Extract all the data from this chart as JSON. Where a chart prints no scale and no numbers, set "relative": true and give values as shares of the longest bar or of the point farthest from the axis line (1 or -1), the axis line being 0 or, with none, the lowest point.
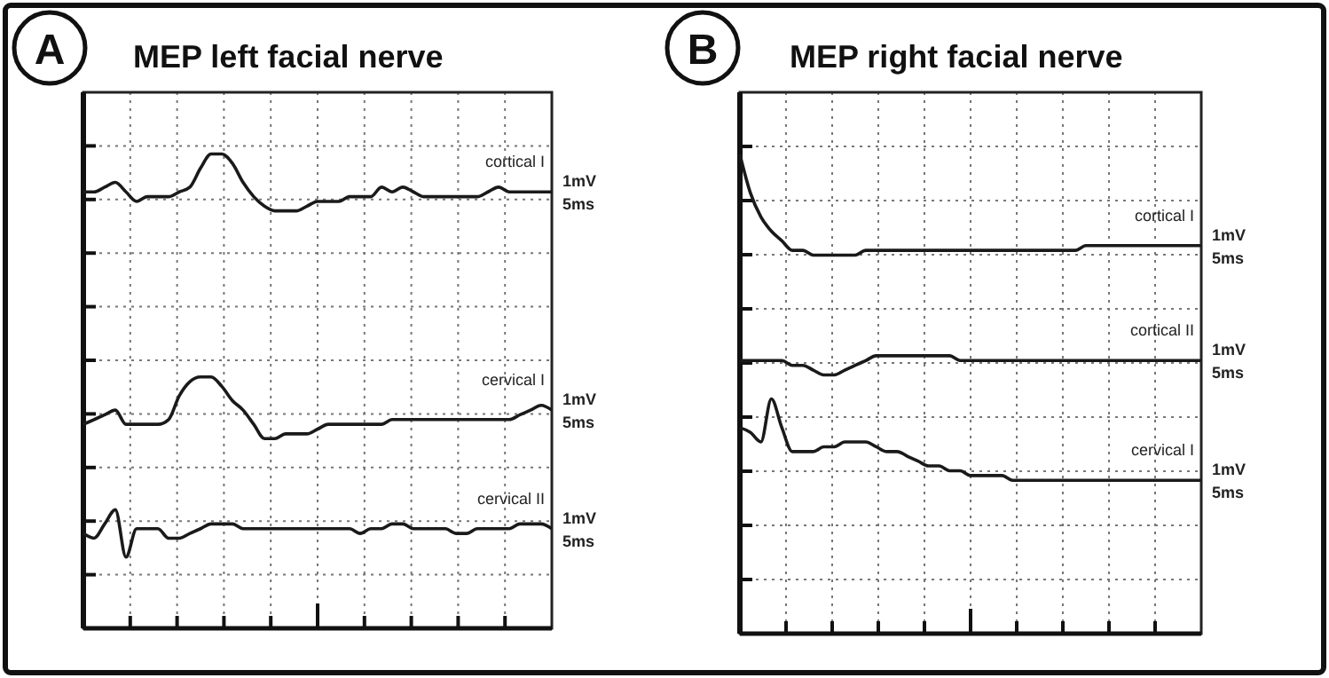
{
  "chart_data": [
    {
      "type": "line",
      "title": "MEP left facial nerve",
      "relative": true,
      "grid": true,
      "categories": [
        null,
        null,
        null,
        null,
        null,
        null,
        null,
        null,
        null,
        null,
        null,
        null,
        null,
        null,
        null,
        null,
        null,
        null,
        null,
        null,
        null,
        null,
        null,
        null,
        null,
        null,
        null,
        null,
        null,
        null,
        null,
        null,
        null,
        null,
        null,
        null,
        null,
        null,
        null,
        null,
        null,
        null,
        null,
        null,
        null
      ],
      "annotations": [
        "A",
        "1mV",
        "5ms",
        "1mV",
        "5ms",
        "1mV",
        "5ms"
      ],
      "series": [
        {
          "name": "cortical I",
          "color": "#1a1a1a",
          "values": [
            0.92,
            0.92,
            0.93,
            0.94,
            0.92,
            0.9,
            0.91,
            0.91,
            0.91,
            0.92,
            0.93,
            0.97,
            1,
            1,
            0.98,
            0.94,
            0.91,
            0.89,
            0.88,
            0.88,
            0.88,
            0.89,
            0.9,
            0.9,
            0.9,
            0.91,
            0.91,
            0.91,
            0.93,
            0.92,
            0.93,
            0.92,
            0.91,
            0.91,
            0.91,
            0.91,
            0.91,
            0.91,
            0.92,
            0.93,
            0.92,
            0.92,
            0.92,
            0.92,
            0.92
          ]
        },
        {
          "name": "cervical I",
          "color": "#1a1a1a",
          "values": [
            0.43,
            0.44,
            0.45,
            0.46,
            0.43,
            0.43,
            0.43,
            0.43,
            0.44,
            0.49,
            0.52,
            0.53,
            0.53,
            0.51,
            0.48,
            0.46,
            0.43,
            0.4,
            0.4,
            0.41,
            0.41,
            0.41,
            0.42,
            0.43,
            0.43,
            0.43,
            0.43,
            0.43,
            0.43,
            0.44,
            0.44,
            0.44,
            0.44,
            0.44,
            0.44,
            0.44,
            0.44,
            0.44,
            0.44,
            0.44,
            0.44,
            0.45,
            0.46,
            0.47,
            0.46
          ]
        },
        {
          "name": "cervical II",
          "color": "#1a1a1a",
          "values": [
            0.2,
            0.19,
            0.22,
            0.25,
            0.15,
            0.21,
            0.21,
            0.21,
            0.19,
            0.19,
            0.2,
            0.21,
            0.22,
            0.22,
            0.22,
            0.21,
            0.21,
            0.21,
            0.21,
            0.21,
            0.21,
            0.21,
            0.21,
            0.21,
            0.21,
            0.21,
            0.2,
            0.21,
            0.21,
            0.22,
            0.22,
            0.21,
            0.21,
            0.21,
            0.21,
            0.2,
            0.2,
            0.21,
            0.21,
            0.21,
            0.21,
            0.22,
            0.22,
            0.22,
            0.21
          ]
        }
      ]
    },
    {
      "type": "line",
      "title": "MEP right facial nerve",
      "relative": true,
      "grid": true,
      "categories": [
        null,
        null,
        null,
        null,
        null,
        null,
        null,
        null,
        null,
        null,
        null,
        null,
        null,
        null,
        null,
        null,
        null,
        null,
        null,
        null,
        null,
        null,
        null,
        null,
        null,
        null,
        null,
        null,
        null,
        null,
        null,
        null,
        null,
        null,
        null,
        null,
        null,
        null,
        null,
        null,
        null,
        null,
        null,
        null,
        null
      ],
      "annotations": [
        "B",
        "1mV",
        "5ms",
        "1mV",
        "5ms",
        "1mV",
        "5ms"
      ],
      "series": [
        {
          "name": "cortical I",
          "color": "#1a1a1a",
          "values": [
            1,
            0.92,
            0.87,
            0.84,
            0.82,
            0.8,
            0.8,
            0.79,
            0.79,
            0.79,
            0.79,
            0.79,
            0.8,
            0.8,
            0.8,
            0.8,
            0.8,
            0.8,
            0.8,
            0.8,
            0.8,
            0.8,
            0.8,
            0.8,
            0.8,
            0.8,
            0.8,
            0.8,
            0.8,
            0.8,
            0.8,
            0.8,
            0.8,
            0.81,
            0.81,
            0.81,
            0.81,
            0.81,
            0.81,
            0.81,
            0.81,
            0.81,
            0.81,
            0.81,
            0.81
          ]
        },
        {
          "name": "cortical II",
          "color": "#1a1a1a",
          "values": [
            0.57,
            0.57,
            0.57,
            0.57,
            0.57,
            0.56,
            0.56,
            0.55,
            0.54,
            0.54,
            0.55,
            0.56,
            0.57,
            0.58,
            0.58,
            0.58,
            0.58,
            0.58,
            0.58,
            0.58,
            0.58,
            0.57,
            0.57,
            0.57,
            0.57,
            0.57,
            0.57,
            0.57,
            0.57,
            0.57,
            0.57,
            0.57,
            0.57,
            0.57,
            0.57,
            0.57,
            0.57,
            0.57,
            0.57,
            0.57,
            0.57,
            0.57,
            0.57,
            0.57,
            0.57
          ]
        },
        {
          "name": "cervical I",
          "color": "#1a1a1a",
          "values": [
            0.43,
            0.42,
            0.4,
            0.49,
            0.43,
            0.38,
            0.38,
            0.38,
            0.39,
            0.39,
            0.4,
            0.4,
            0.4,
            0.39,
            0.38,
            0.38,
            0.37,
            0.36,
            0.35,
            0.35,
            0.34,
            0.34,
            0.33,
            0.33,
            0.33,
            0.33,
            0.32,
            0.32,
            0.32,
            0.32,
            0.32,
            0.32,
            0.32,
            0.32,
            0.32,
            0.32,
            0.32,
            0.32,
            0.32,
            0.32,
            0.32,
            0.32,
            0.32,
            0.32,
            0.32
          ]
        }
      ]
    }
  ]
}
